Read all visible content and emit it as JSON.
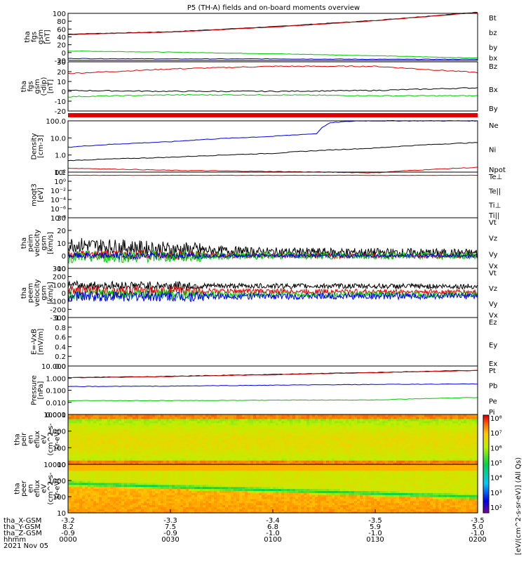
{
  "title": "P5 (TH-A) fields and on-board moments overview",
  "footer": {
    "row_labels": [
      "tha_X-GSM",
      "tha_Y-GSM",
      "tha_Z-GSM",
      "hhmm",
      "2021 Nov 05"
    ],
    "columns": [
      {
        "x": "-3.2",
        "y": "8.2",
        "z": "-0.9",
        "t": "0000"
      },
      {
        "x": "-3.3",
        "y": "7.5",
        "z": "-0.9",
        "t": "0030"
      },
      {
        "x": "-3.4",
        "y": "6.8",
        "z": "-1.0",
        "t": "0100"
      },
      {
        "x": "-3.5",
        "y": "5.9",
        "z": "-1.0",
        "t": "0130"
      },
      {
        "x": "-3.5",
        "y": "5.0",
        "z": "-1.0",
        "t": "0200"
      }
    ]
  },
  "colors": {
    "black": "#000000",
    "red": "#e00000",
    "green": "#00c800",
    "blue": "#0000e0"
  },
  "chart_data": [
    {
      "type": "line",
      "ylabel": [
        "tha",
        "fgs",
        "gsm",
        "[nT]"
      ],
      "ylim": [
        -20,
        100
      ],
      "yticks": [
        "100",
        "80",
        "60",
        "40",
        "20",
        "0",
        "-20"
      ],
      "legend": [
        {
          "name": "Bt",
          "color": "#000000"
        },
        {
          "name": "bz",
          "color": "#e00000"
        },
        {
          "name": "by",
          "color": "#00c800"
        },
        {
          "name": "bx",
          "color": "#0000e0"
        }
      ],
      "series": [
        {
          "name": "Bt",
          "x": [
            0,
            30,
            60,
            90,
            120
          ],
          "values": [
            47,
            53,
            66,
            82,
            103
          ]
        },
        {
          "name": "bz",
          "x": [
            0,
            30,
            60,
            90,
            120
          ],
          "values": [
            46,
            52,
            65,
            81,
            102
          ]
        },
        {
          "name": "by",
          "x": [
            0,
            30,
            60,
            90,
            120
          ],
          "values": [
            4,
            1,
            -3,
            -8,
            -14
          ]
        },
        {
          "name": "bx",
          "x": [
            0,
            30,
            60,
            90,
            120
          ],
          "values": [
            -15,
            -16,
            -16,
            -17,
            -17
          ]
        }
      ]
    },
    {
      "type": "line",
      "ylabel": [
        "tha",
        "fgs",
        "gsm",
        "(-dip)",
        "[nT]"
      ],
      "ylim": [
        -25,
        30
      ],
      "yticks": [
        "30",
        "20",
        "10",
        "0",
        "-10",
        "-20"
      ],
      "legend": [
        {
          "name": "Bz",
          "color": "#e00000"
        },
        {
          "name": "Bx",
          "color": "#000000"
        },
        {
          "name": "By",
          "color": "#00c800"
        }
      ],
      "series": [
        {
          "name": "Bz",
          "x": [
            0,
            30,
            60,
            90,
            120
          ],
          "values": [
            17,
            22,
            25,
            25,
            18
          ]
        },
        {
          "name": "Bx",
          "x": [
            0,
            30,
            60,
            90,
            120
          ],
          "values": [
            -2,
            -3,
            -3,
            -2,
            1
          ]
        },
        {
          "name": "By",
          "x": [
            0,
            30,
            60,
            90,
            120
          ],
          "values": [
            -9,
            -7,
            -7,
            -8,
            -8
          ]
        }
      ]
    },
    {
      "type": "bar-strip",
      "color": "#e00000"
    },
    {
      "type": "line",
      "ylabel": [
        "Density",
        "[cm-3]"
      ],
      "log": true,
      "ylim": [
        0.1,
        200
      ],
      "yticks": [
        "100.0",
        "10.0",
        "1.0",
        "0.1"
      ],
      "legend": [
        {
          "name": "Ne",
          "color": "#e00000"
        },
        {
          "name": "Ni",
          "color": "#000000"
        },
        {
          "name": "Npot",
          "color": "#0000e0"
        }
      ],
      "series": [
        {
          "name": "Ni",
          "x": [
            0,
            30,
            60,
            90,
            120
          ],
          "values": [
            0.55,
            0.9,
            1.6,
            3.5,
            8
          ]
        },
        {
          "name": "Npot",
          "x": [
            0,
            30,
            60,
            73,
            77,
            85,
            120
          ],
          "values": [
            4,
            9,
            20,
            30,
            150,
            200,
            200
          ]
        },
        {
          "name": "Ne",
          "x": [
            0,
            30,
            60,
            90,
            120
          ],
          "values": [
            0.18,
            0.13,
            0.11,
            0.09,
            0.2
          ]
        }
      ]
    },
    {
      "type": "line",
      "ylabel": [
        "moqt3",
        "[eV]"
      ],
      "log": true,
      "ylim": [
        1e-08,
        100
      ],
      "yticks": [
        "10²",
        "10⁰",
        "10⁻²",
        "10⁻⁴",
        "10⁻⁶",
        "10⁻⁸"
      ],
      "legend": [
        {
          "name": "Te⊥",
          "color": "#e00000"
        },
        {
          "name": "Te||",
          "color": "#000000"
        },
        {
          "name": "Ti⊥",
          "color": "#e00000"
        },
        {
          "name": "Ti||",
          "color": "#00c800"
        }
      ],
      "series": [
        {
          "name": "Te⊥",
          "x": [
            0,
            60,
            120
          ],
          "values": [
            20,
            20,
            20
          ]
        }
      ]
    },
    {
      "type": "line",
      "ylabel": [
        "tha",
        "peim",
        "velocity",
        "gsm",
        "[km/s]"
      ],
      "ylim": [
        -10,
        30
      ],
      "yticks": [
        "30",
        "20",
        "10",
        "0",
        "-10"
      ],
      "legend": [
        {
          "name": "Vt",
          "color": "#000000"
        },
        {
          "name": "Vz",
          "color": "#e00000"
        },
        {
          "name": "Vy",
          "color": "#00c800"
        },
        {
          "name": "Vx",
          "color": "#0000e0"
        }
      ],
      "series": [
        {
          "name": "Vt",
          "noise": 5,
          "x": [
            0,
            30,
            60,
            120
          ],
          "values": [
            9,
            5,
            3,
            2
          ]
        },
        {
          "name": "Vz",
          "noise": 3,
          "x": [
            0,
            60,
            120
          ],
          "values": [
            1,
            0,
            0
          ]
        },
        {
          "name": "Vy",
          "noise": 4,
          "x": [
            0,
            60,
            120
          ],
          "values": [
            -1,
            0,
            0
          ]
        },
        {
          "name": "Vx",
          "noise": 2,
          "x": [
            0,
            60,
            120
          ],
          "values": [
            0,
            0,
            0
          ]
        }
      ]
    },
    {
      "type": "line",
      "ylabel": [
        "tha",
        "peem",
        "velocity",
        "gsm",
        "[km/s]"
      ],
      "ylim": [
        -300,
        300
      ],
      "yticks": [
        "300",
        "200",
        "100",
        "0",
        "-100",
        "-200",
        "-300"
      ],
      "legend": [
        {
          "name": "Vt",
          "color": "#000000"
        },
        {
          "name": "Vz",
          "color": "#e00000"
        },
        {
          "name": "Vy",
          "color": "#00c800"
        },
        {
          "name": "Vx",
          "color": "#0000e0"
        }
      ],
      "series": [
        {
          "name": "Vt",
          "noise": 45,
          "x": [
            0,
            120
          ],
          "values": [
            90,
            80
          ]
        },
        {
          "name": "Vz",
          "noise": 45,
          "x": [
            0,
            120
          ],
          "values": [
            30,
            10
          ]
        },
        {
          "name": "Vy",
          "noise": 50,
          "x": [
            0,
            120
          ],
          "values": [
            -20,
            -20
          ]
        },
        {
          "name": "Vx",
          "noise": 55,
          "x": [
            0,
            120
          ],
          "values": [
            -40,
            -40
          ]
        }
      ]
    },
    {
      "type": "line",
      "ylabel": [
        "E=-VxB",
        "[mV/m]"
      ],
      "ylim": [
        0,
        1
      ],
      "yticks": [
        "1.0",
        "0.8",
        "0.6",
        "0.4",
        "0.2",
        "0.0"
      ],
      "legend": [
        {
          "name": "Ez",
          "color": "#e00000"
        },
        {
          "name": "Ey",
          "color": "#00c800"
        },
        {
          "name": "Ex",
          "color": "#0000e0"
        }
      ],
      "series": []
    },
    {
      "type": "line",
      "ylabel": [
        "Pressure",
        "[nPa]"
      ],
      "log": true,
      "ylim": [
        0.001,
        10
      ],
      "yticks": [
        "10.000",
        "1.000",
        "0.100",
        "0.010",
        "0.001"
      ],
      "legend": [
        {
          "name": "Pt",
          "color": "#000000"
        },
        {
          "name": "Pb",
          "color": "#e00000"
        },
        {
          "name": "Pe",
          "color": "#00c800"
        },
        {
          "name": "Pi",
          "color": "#0000e0"
        }
      ],
      "series": [
        {
          "name": "Pt",
          "x": [
            0,
            30,
            60,
            90,
            120
          ],
          "values": [
            1.1,
            1.4,
            2.0,
            2.9,
            4.4
          ]
        },
        {
          "name": "Pb",
          "x": [
            0,
            30,
            60,
            90,
            120
          ],
          "values": [
            1.05,
            1.35,
            1.9,
            2.8,
            4.2
          ]
        },
        {
          "name": "Pi",
          "x": [
            0,
            30,
            60,
            90,
            120
          ],
          "values": [
            0.2,
            0.22,
            0.26,
            0.3,
            0.33
          ]
        },
        {
          "name": "Pe",
          "x": [
            0,
            30,
            60,
            90,
            120
          ],
          "values": [
            0.014,
            0.014,
            0.015,
            0.016,
            0.025
          ]
        }
      ]
    },
    {
      "type": "heatmap",
      "ylabel": [
        "tha",
        "peir",
        "en",
        "eflux",
        "eV",
        "(cm^2-s-",
        "sr-eV)"
      ],
      "log": true,
      "ylim": [
        5,
        30000
      ],
      "yticks": [
        "10000",
        "1000",
        "100",
        "10"
      ]
    },
    {
      "type": "heatmap",
      "ylabel": [
        "tha",
        "peer",
        "en",
        "eflux",
        "eV",
        "(cm^2-s-",
        "sr-eV)"
      ],
      "log": true,
      "ylim": [
        5,
        30000
      ],
      "yticks": [
        "10000",
        "1000",
        "100",
        "10"
      ]
    }
  ],
  "colorbar": {
    "ticks": [
      "10⁸",
      "10⁷",
      "10⁶",
      "10⁵",
      "10⁴",
      "10³",
      "10²"
    ],
    "label": "[eV/(cm^2-s-sr-eV)] (All Qs)"
  }
}
